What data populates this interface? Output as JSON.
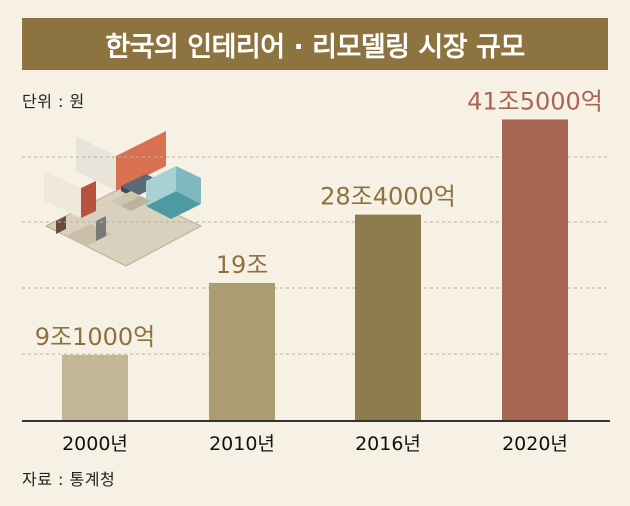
{
  "title": "한국의 인테리어 · 리모델링 시장 규모",
  "unit_label": "단위 : 원",
  "source_label": "자료 : 통계청",
  "colors": {
    "background": "#f6f1e4",
    "title_bg": "#8c7340",
    "bar_2000": "#c2b697",
    "bar_2010": "#ac9c72",
    "bar_2016": "#8c7b4b",
    "bar_2020": "#a76654",
    "label_gold": "#8c7340",
    "label_red": "#a76654"
  },
  "chart_data": {
    "type": "bar",
    "categories": [
      "2000년",
      "2010년",
      "2016년",
      "2020년"
    ],
    "values": [
      9.1,
      19,
      28.4,
      41.5
    ],
    "value_unit": "조 원",
    "data_labels": [
      "9조1000억",
      "19조",
      "28조4000억",
      "41조5000억"
    ],
    "grid": "dashed horizontal",
    "ylim": [
      0,
      45
    ]
  }
}
